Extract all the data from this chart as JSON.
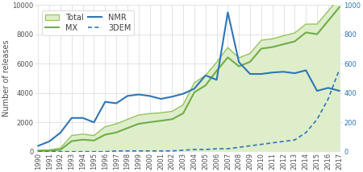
{
  "years": [
    1990,
    1991,
    1992,
    1993,
    1994,
    1995,
    1996,
    1997,
    1998,
    1999,
    2000,
    2001,
    2002,
    2003,
    2004,
    2005,
    2006,
    2007,
    2008,
    2009,
    2010,
    2011,
    2012,
    2013,
    2014,
    2015,
    2016,
    2017
  ],
  "total": [
    100,
    120,
    250,
    1100,
    1200,
    1100,
    1700,
    1900,
    2200,
    2500,
    2600,
    2650,
    2750,
    3200,
    4700,
    5200,
    6100,
    7100,
    6400,
    6700,
    7600,
    7700,
    7900,
    8100,
    8700,
    8700,
    9600,
    10500
  ],
  "mx": [
    55,
    65,
    130,
    720,
    820,
    760,
    1160,
    1310,
    1610,
    1900,
    2010,
    2110,
    2210,
    2620,
    4050,
    4520,
    5520,
    6430,
    5820,
    6130,
    7030,
    7130,
    7330,
    7520,
    8130,
    8010,
    8930,
    9850
  ],
  "nmr": [
    40,
    70,
    130,
    230,
    230,
    200,
    340,
    330,
    380,
    390,
    380,
    360,
    375,
    395,
    430,
    520,
    490,
    950,
    610,
    530,
    530,
    540,
    545,
    535,
    555,
    415,
    435,
    415
  ],
  "dem": [
    0,
    0,
    0,
    0,
    0,
    0,
    0,
    5,
    5,
    5,
    5,
    5,
    5,
    10,
    15,
    15,
    20,
    20,
    30,
    40,
    50,
    60,
    70,
    80,
    130,
    220,
    360,
    560
  ],
  "total_color": "#92c258",
  "total_fill_color": "#deeecb",
  "mx_color": "#70ad47",
  "nmr_color": "#2e75b6",
  "dem_color": "#2e75b6",
  "background_color": "#ffffff",
  "grid_color": "#d9d9d9",
  "ylabel_left": "Number of releases",
  "ylim_left": [
    0,
    10000
  ],
  "ylim_right": [
    0,
    1000
  ],
  "yticks_left": [
    0,
    2000,
    4000,
    6000,
    8000,
    10000
  ],
  "yticks_right": [
    0,
    200,
    400,
    600,
    800,
    1000
  ],
  "label_fontsize": 7,
  "tick_fontsize": 6,
  "legend_fontsize": 7
}
